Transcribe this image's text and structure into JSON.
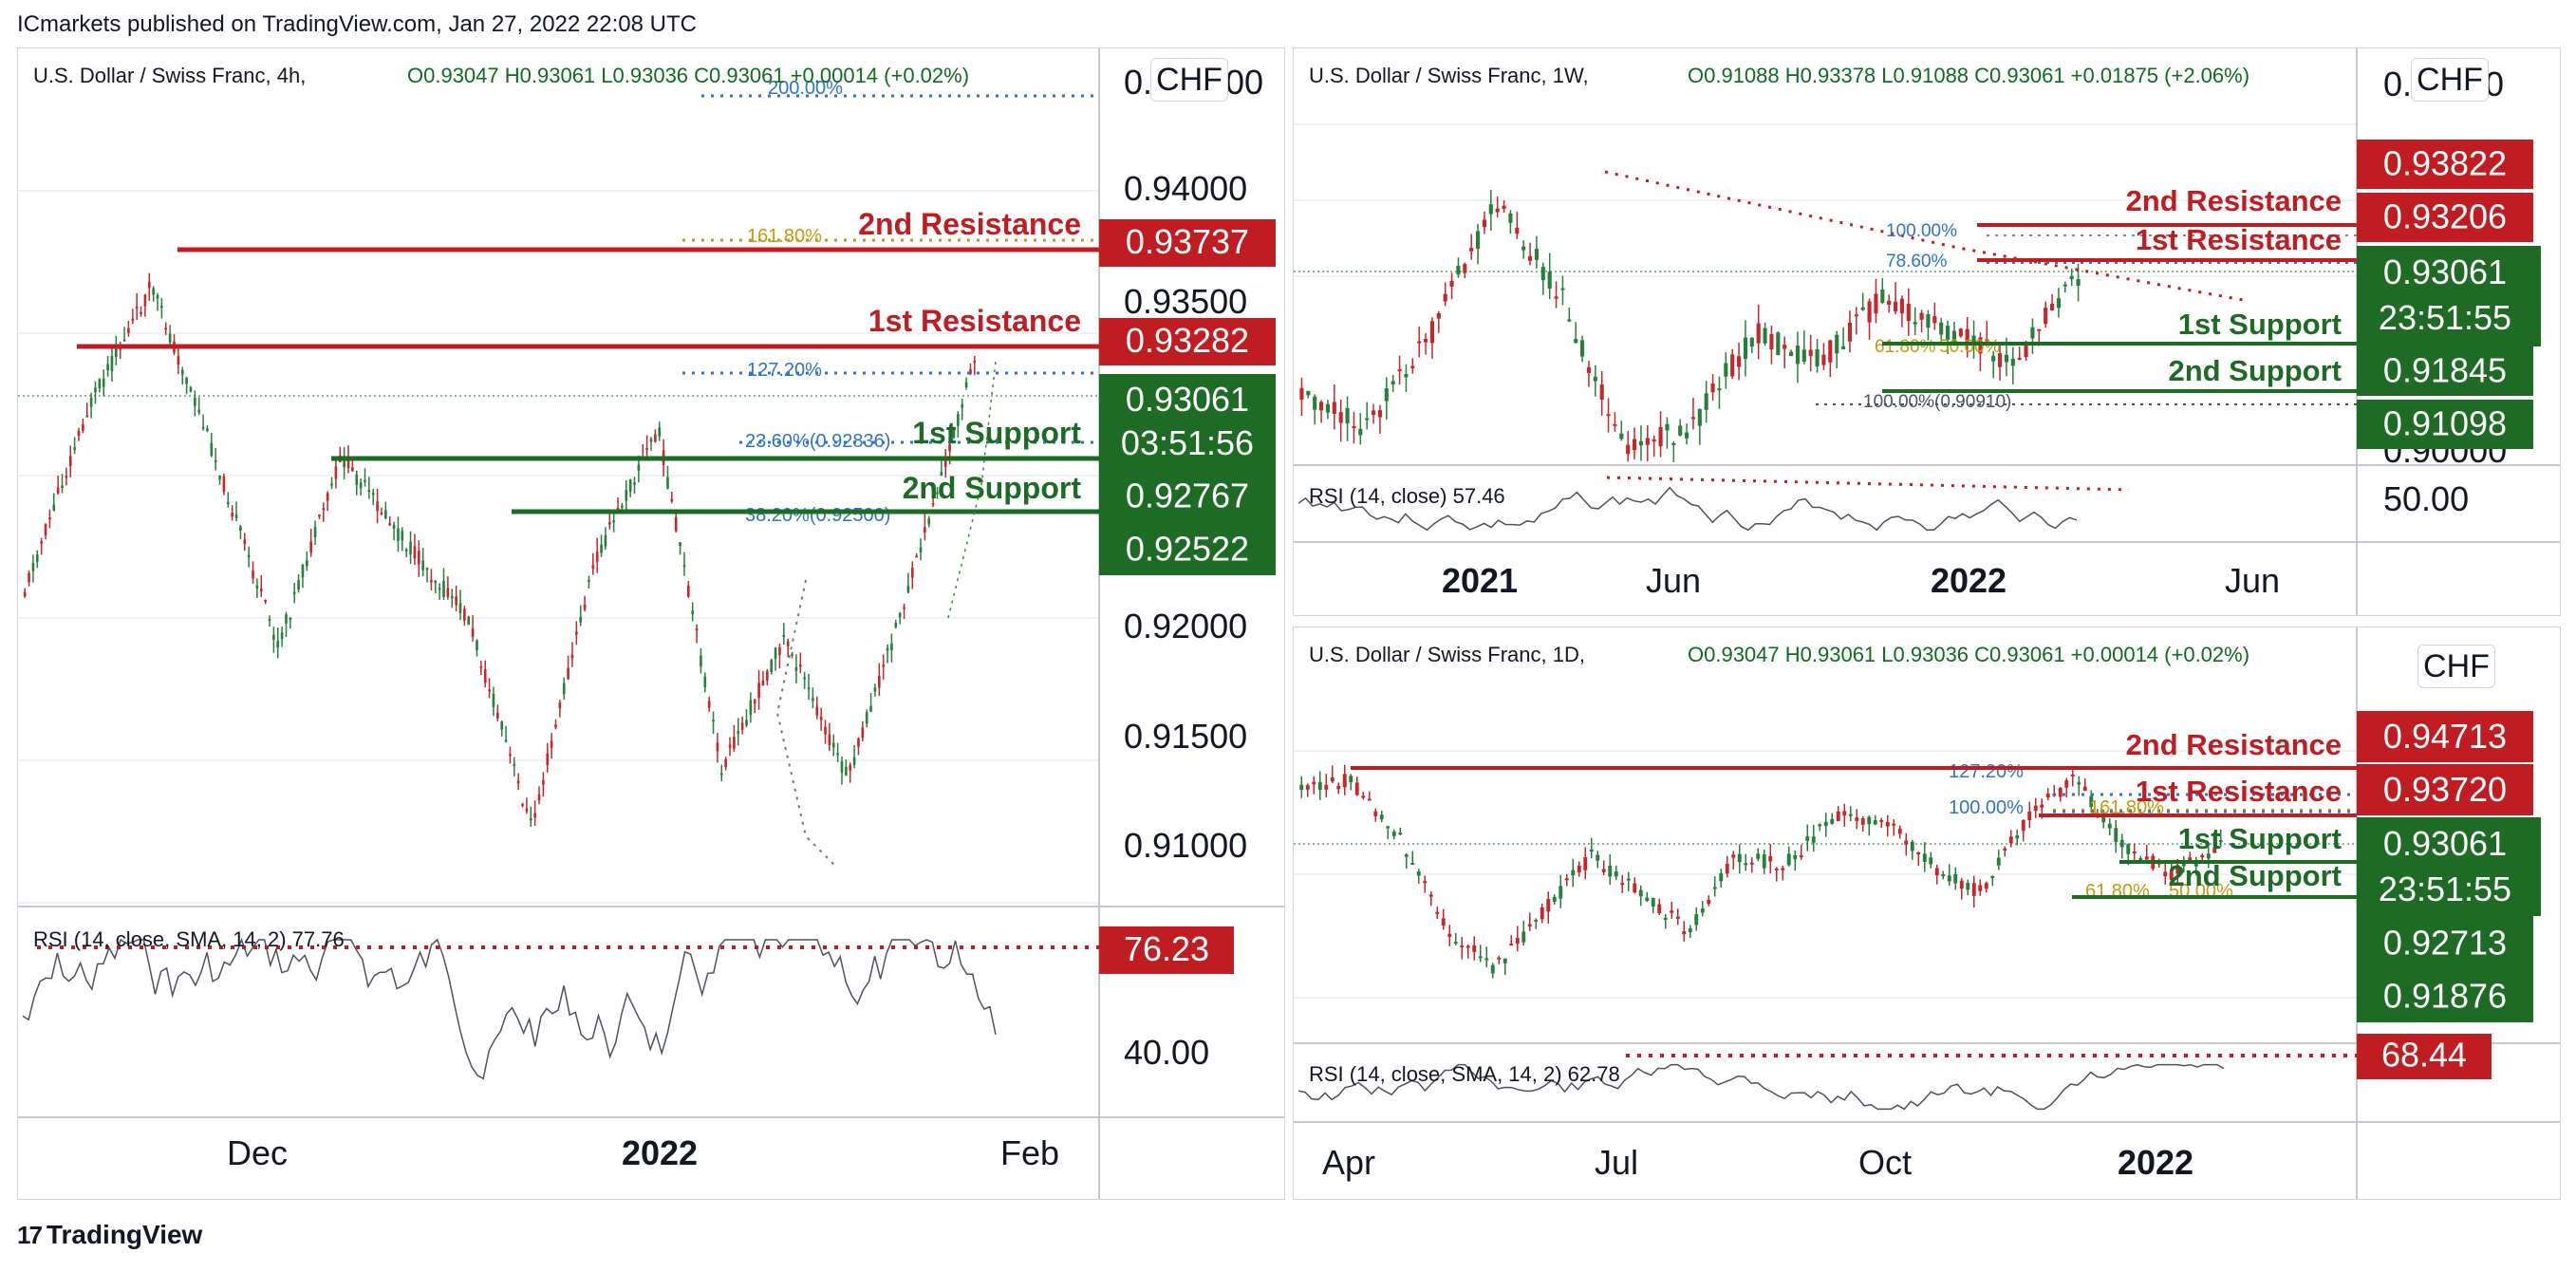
{
  "header": {
    "text": "ICmarkets published on TradingView.com, Jan 27, 2022 22:08 UTC"
  },
  "footer": {
    "logo": "TradingView",
    "logo_mark": "17"
  },
  "colors": {
    "up": "#26803a",
    "down": "#c8262a",
    "res": "#c01d22",
    "sup": "#1e6b25",
    "fib_blue": "#2f74c6",
    "fib_gold": "#c59a10",
    "rsi": "#4c525e",
    "grid": "#e0e3eb"
  },
  "chart_data": [
    {
      "type": "candlestick",
      "title": "U.S. Dollar / Swiss Franc, 4h,",
      "currency": "CHF",
      "ohlc": "O0.93047   H0.93061   L0.93036   C0.93061   +0.00014 (+0.02%)",
      "price_axis_ticks": [
        "0.94000",
        "0.93500",
        "0.92000",
        "0.91500",
        "0.91000"
      ],
      "price_axis_partial": [
        "0.",
        "00"
      ],
      "time_axis_ticks": [
        "Dec",
        "2022",
        "Feb"
      ],
      "levels": [
        {
          "label": "2nd Resistance",
          "price": "0.93737",
          "kind": "resistance"
        },
        {
          "label": "1st Resistance",
          "price": "0.93282",
          "kind": "resistance"
        },
        {
          "label": "1st Support",
          "price": "0.92767",
          "kind": "support"
        },
        {
          "label": "2nd Support",
          "price": "0.92522",
          "kind": "support"
        }
      ],
      "last_price": "0.93061",
      "countdown": "03:51:56",
      "fib_labels": [
        "200.00%",
        "161.80%",
        "127.20%",
        "23.60%(0.92836)",
        "38.20%(0.92500)"
      ],
      "rsi": {
        "label": "RSI (14, close, SMA, 14, 2)",
        "value": "77.76",
        "marker": "76.23",
        "axis": "40.00"
      }
    },
    {
      "type": "candlestick",
      "title": "U.S. Dollar / Swiss Franc, 1W,",
      "currency": "CHF",
      "ohlc": "O0.91088   H0.93378   L0.91088   C0.93061   +0.01875 (+2.06%)",
      "price_axis_partial": [
        "0.",
        "0"
      ],
      "price_axis_bottom": "0.90000",
      "time_axis_ticks": [
        "2021",
        "Jun",
        "2022",
        "Jun"
      ],
      "levels": [
        {
          "label": "2nd Resistance",
          "price": "0.93822",
          "kind": "resistance"
        },
        {
          "label": "1st Resistance",
          "price": "0.93206",
          "kind": "resistance"
        },
        {
          "label": "1st Support",
          "price": "0.91845",
          "kind": "support"
        },
        {
          "label": "2nd Support",
          "price": "0.91098",
          "kind": "support"
        }
      ],
      "last_price": "0.93061",
      "countdown": "23:51:55",
      "fib_labels": [
        "100.00%",
        "78.60%",
        "61.80%",
        "50.00%",
        "100.00%(0.90910)"
      ],
      "rsi": {
        "label": "RSI (14, close)",
        "value": "57.46",
        "axis": "50.00"
      }
    },
    {
      "type": "candlestick",
      "title": "U.S. Dollar / Swiss Franc, 1D,",
      "currency": "CHF",
      "ohlc": "O0.93047   H0.93061   L0.93036   C0.93061   +0.00014 (+0.02%)",
      "time_axis_ticks": [
        "Apr",
        "Jul",
        "Oct",
        "2022"
      ],
      "levels": [
        {
          "label": "2nd Resistance",
          "price": "0.94713",
          "kind": "resistance"
        },
        {
          "label": "1st Resistance",
          "price": "0.93720",
          "kind": "resistance"
        },
        {
          "label": "1st Support",
          "price": "0.92713",
          "kind": "support"
        },
        {
          "label": "2nd Support",
          "price": "0.91876",
          "kind": "support"
        }
      ],
      "last_price": "0.93061",
      "countdown": "23:51:55",
      "fib_labels": [
        "127.20%",
        "100.00%",
        "161.80%",
        "61.80%",
        "50.00%"
      ],
      "rsi": {
        "label": "RSI (14, close, SMA, 14, 2)",
        "value": "62.78",
        "marker": "68.44"
      }
    }
  ]
}
